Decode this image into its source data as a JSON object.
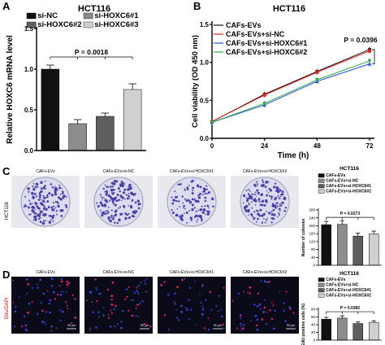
{
  "panels": {
    "a": {
      "letter": "A",
      "title": "HCT116"
    },
    "b": {
      "letter": "B",
      "title": "HCT116"
    },
    "c": {
      "letter": "C",
      "side": "HCT116",
      "chart_title": "HCT116"
    },
    "d": {
      "letter": "D",
      "side": "Edu/DAPI",
      "chart_title": "HCT116"
    }
  },
  "images": {
    "c_labels": [
      "CAFs-EVs",
      "CAFs-EVs+si-NC",
      "CAFs-EVs+si-HOXC6#1",
      "CAFs-EVs+si-HOXC6#2"
    ],
    "d_labels": [
      "CAFs-EVs",
      "CAFs-EVs+si-NC",
      "CAFs-EVs+si-HOXC6#1",
      "CAFs-EVs+si-HOXC6#2"
    ],
    "d_scale": "50 μm",
    "c_colonies": [
      150,
      165,
      110,
      145
    ],
    "d_nuclei": [
      60,
      60,
      45,
      50
    ],
    "colors": {
      "dish_bg": "#dcdcf0",
      "colony": "#4a3fa8",
      "fluor_bg": "#0a0a18",
      "dapi": "#3b4fff",
      "edu": "#ff2a6a"
    }
  },
  "chart_data": [
    {
      "id": "A",
      "type": "bar",
      "title": "HCT116",
      "ylabel": "Relative HOXC6 mRNA level",
      "ylim": [
        0,
        1.5
      ],
      "yticks": [
        "0.0",
        "0.5",
        "1.0",
        "1.5"
      ],
      "categories": [
        "si-NC",
        "si-HOXC6#1",
        "si-HOXC6#2",
        "si-HOXC6#3"
      ],
      "values": [
        1.0,
        0.33,
        0.42,
        0.75
      ],
      "errors": [
        0.05,
        0.05,
        0.04,
        0.07
      ],
      "colors": [
        "#111111",
        "#8c8c8c",
        "#5e5e5e",
        "#d0d0d0"
      ],
      "annotation": "P = 0.0018",
      "legend": [
        "si-NC",
        "si-HOXC6#1",
        "si-HOXC6#2",
        "si-HOXC6#3"
      ]
    },
    {
      "id": "B",
      "type": "line",
      "title": "HCT116",
      "xlabel": "Time (h)",
      "ylabel": "Cell viability (OD 450 nm)",
      "x": [
        0,
        24,
        48,
        72
      ],
      "xticks": [
        "0",
        "24",
        "48",
        "72"
      ],
      "ylim": [
        0,
        1.5
      ],
      "yticks": [
        "0.0",
        "0.5",
        "1.0",
        "1.5"
      ],
      "annotation": "P = 0.0396",
      "series": [
        {
          "name": "CAFs-EVs",
          "values": [
            0.22,
            0.58,
            0.88,
            1.17
          ],
          "color": "#111111"
        },
        {
          "name": "CAFs-EVs+si-NC",
          "values": [
            0.22,
            0.57,
            0.87,
            1.15
          ],
          "color": "#e02020"
        },
        {
          "name": "CAFs-EVs+si-HOXC6#1",
          "values": [
            0.21,
            0.44,
            0.75,
            0.98
          ],
          "color": "#2a4fd8"
        },
        {
          "name": "CAFs-EVs+si-HOXC6#2",
          "values": [
            0.21,
            0.46,
            0.77,
            1.02
          ],
          "color": "#2aa84a"
        }
      ]
    },
    {
      "id": "C",
      "type": "bar",
      "title": "HCT116",
      "ylabel": "Number of colonies",
      "ylim": [
        0,
        300
      ],
      "yticks": [
        "0",
        "40",
        "80",
        "120",
        "160",
        "200",
        "240",
        "280"
      ],
      "categories": [
        "CAFs-EVs",
        "CAFs-EVs+si-NC",
        "CAFs-EVs+si-HOXC6#1",
        "CAFs-EVs+si-HOXC6#2"
      ],
      "values": [
        220,
        222,
        158,
        170
      ],
      "errors": [
        18,
        20,
        16,
        15
      ],
      "colors": [
        "#111111",
        "#8c8c8c",
        "#5e5e5e",
        "#d0d0d0"
      ],
      "annotation": "P = 0.0273",
      "legend": [
        "CAFs-EVs",
        "CAFs-EVs+si-NC",
        "CAFs-EVs+si-HOXC6#1",
        "CAFs-EVs+si-HOXC6#2"
      ]
    },
    {
      "id": "D",
      "type": "bar",
      "title": "HCT116",
      "ylabel": "EdU positive cells (%)",
      "ylim": [
        0,
        80
      ],
      "yticks": [
        "0",
        "20",
        "40",
        "60",
        "80"
      ],
      "categories": [
        "CAFs-EVs",
        "CAFs-EVs+si-NC",
        "CAFs-EVs+si-HOXC6#1",
        "CAFs-EVs+si-HOXC6#2"
      ],
      "values": [
        54,
        57,
        43,
        46
      ],
      "errors": [
        5,
        6,
        4,
        4
      ],
      "colors": [
        "#111111",
        "#8c8c8c",
        "#5e5e5e",
        "#d0d0d0"
      ],
      "annotation": "P = 0.0382",
      "legend": [
        "CAFs-EVs",
        "CAFs-EVs+si-NC",
        "CAFs-EVs+si-HOXC6#1",
        "CAFs-EVs+si-HOXC6#2"
      ]
    }
  ]
}
